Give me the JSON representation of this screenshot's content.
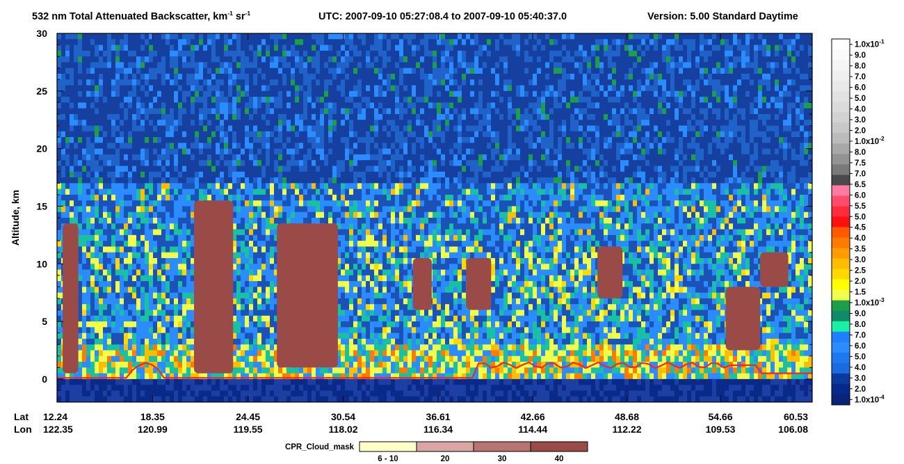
{
  "chart_data": {
    "type": "heatmap",
    "title": {
      "main": "532 nm Total Attenuated Backscatter, km",
      "unit_exp_1": "-1",
      "unit_mid": " sr",
      "unit_exp_2": "-1",
      "utc": "UTC:  2007-09-10 05:27:08.4  to  2007-09-10 05:40:37.0",
      "version": "Version: 5.00  Standard  Daytime"
    },
    "ylabel": "Altitude, km",
    "ylim": [
      -2,
      30
    ],
    "yticks": [
      "30",
      "25",
      "20",
      "15",
      "10",
      "5",
      "0"
    ],
    "ytick_values": [
      30,
      25,
      20,
      15,
      10,
      5,
      0
    ],
    "x_row_labels": [
      "Lat",
      "Lon"
    ],
    "lat_ticks": [
      "12.24",
      "18.35",
      "24.45",
      "30.54",
      "36.61",
      "42.66",
      "48.68",
      "54.66",
      "60.53"
    ],
    "lon_ticks": [
      "122.35",
      "120.99",
      "119.55",
      "118.02",
      "116.34",
      "114.44",
      "112.22",
      "109.53",
      "106.08"
    ],
    "colorbar": {
      "labels": [
        "1.0x10-1",
        "9.0",
        "8.0",
        "7.0",
        "6.0",
        "5.0",
        "4.0",
        "3.0",
        "2.0",
        "1.0x10-2",
        "8.0",
        "7.5",
        "7.0",
        "6.5",
        "6.0",
        "5.5",
        "5.0",
        "4.5",
        "4.0",
        "3.5",
        "3.0",
        "2.5",
        "2.0",
        "1.5",
        "1.0x10-3",
        "9.0",
        "8.0",
        "7.0",
        "6.0",
        "5.0",
        "4.0",
        "3.0",
        "2.0",
        "1.0x10-4"
      ],
      "colors": [
        "#ffffff",
        "#fafafa",
        "#f5f5f5",
        "#efefef",
        "#e9e9e9",
        "#e2e2e2",
        "#dbdbdb",
        "#d2d2d2",
        "#c8c8c8",
        "#bbbbbb",
        "#a8a8a8",
        "#939393",
        "#7a7a7a",
        "#4a4a4a",
        "#ff7aa0",
        "#ff4c6a",
        "#ff2b3f",
        "#ff1010",
        "#ff5a00",
        "#ff7a00",
        "#ff9c00",
        "#ffbd00",
        "#ffd800",
        "#ffff00",
        "#f0ff4a",
        "#1d9e49",
        "#0f8a6a",
        "#19f0a4",
        "#1f7fff",
        "#2a8cff",
        "#1e78f0",
        "#1a6ae0",
        "#0a3a9e",
        "#072a8a",
        "#0a2478"
      ]
    },
    "mask_legend": {
      "title": "CPR_Cloud_mask",
      "labels": [
        "6 - 10",
        "20",
        "30",
        "40"
      ],
      "colors": [
        "#ffffc8",
        "#d9a6a4",
        "#b87472",
        "#9a4b47"
      ]
    },
    "features": {
      "surface_altitude_km": 0.1,
      "cloud_mask_blobs_km": [
        {
          "lat_from": 12.6,
          "lat_to": 13.6,
          "alt_from": 0.5,
          "alt_to": 13.5
        },
        {
          "lat_from": 21.0,
          "lat_to": 23.5,
          "alt_from": 0.5,
          "alt_to": 15.5
        },
        {
          "lat_from": 26.3,
          "lat_to": 30.2,
          "alt_from": 1.0,
          "alt_to": 13.5
        },
        {
          "lat_from": 35.0,
          "lat_to": 36.2,
          "alt_from": 6.0,
          "alt_to": 10.5
        },
        {
          "lat_from": 38.4,
          "lat_to": 40.0,
          "alt_from": 6.0,
          "alt_to": 10.5
        },
        {
          "lat_from": 46.8,
          "lat_to": 48.4,
          "alt_from": 7.0,
          "alt_to": 11.5
        },
        {
          "lat_from": 55.0,
          "lat_to": 57.2,
          "alt_from": 2.5,
          "alt_to": 8.0
        },
        {
          "lat_from": 57.2,
          "lat_to": 59.0,
          "alt_from": 8.0,
          "alt_to": 11.0
        }
      ]
    }
  }
}
